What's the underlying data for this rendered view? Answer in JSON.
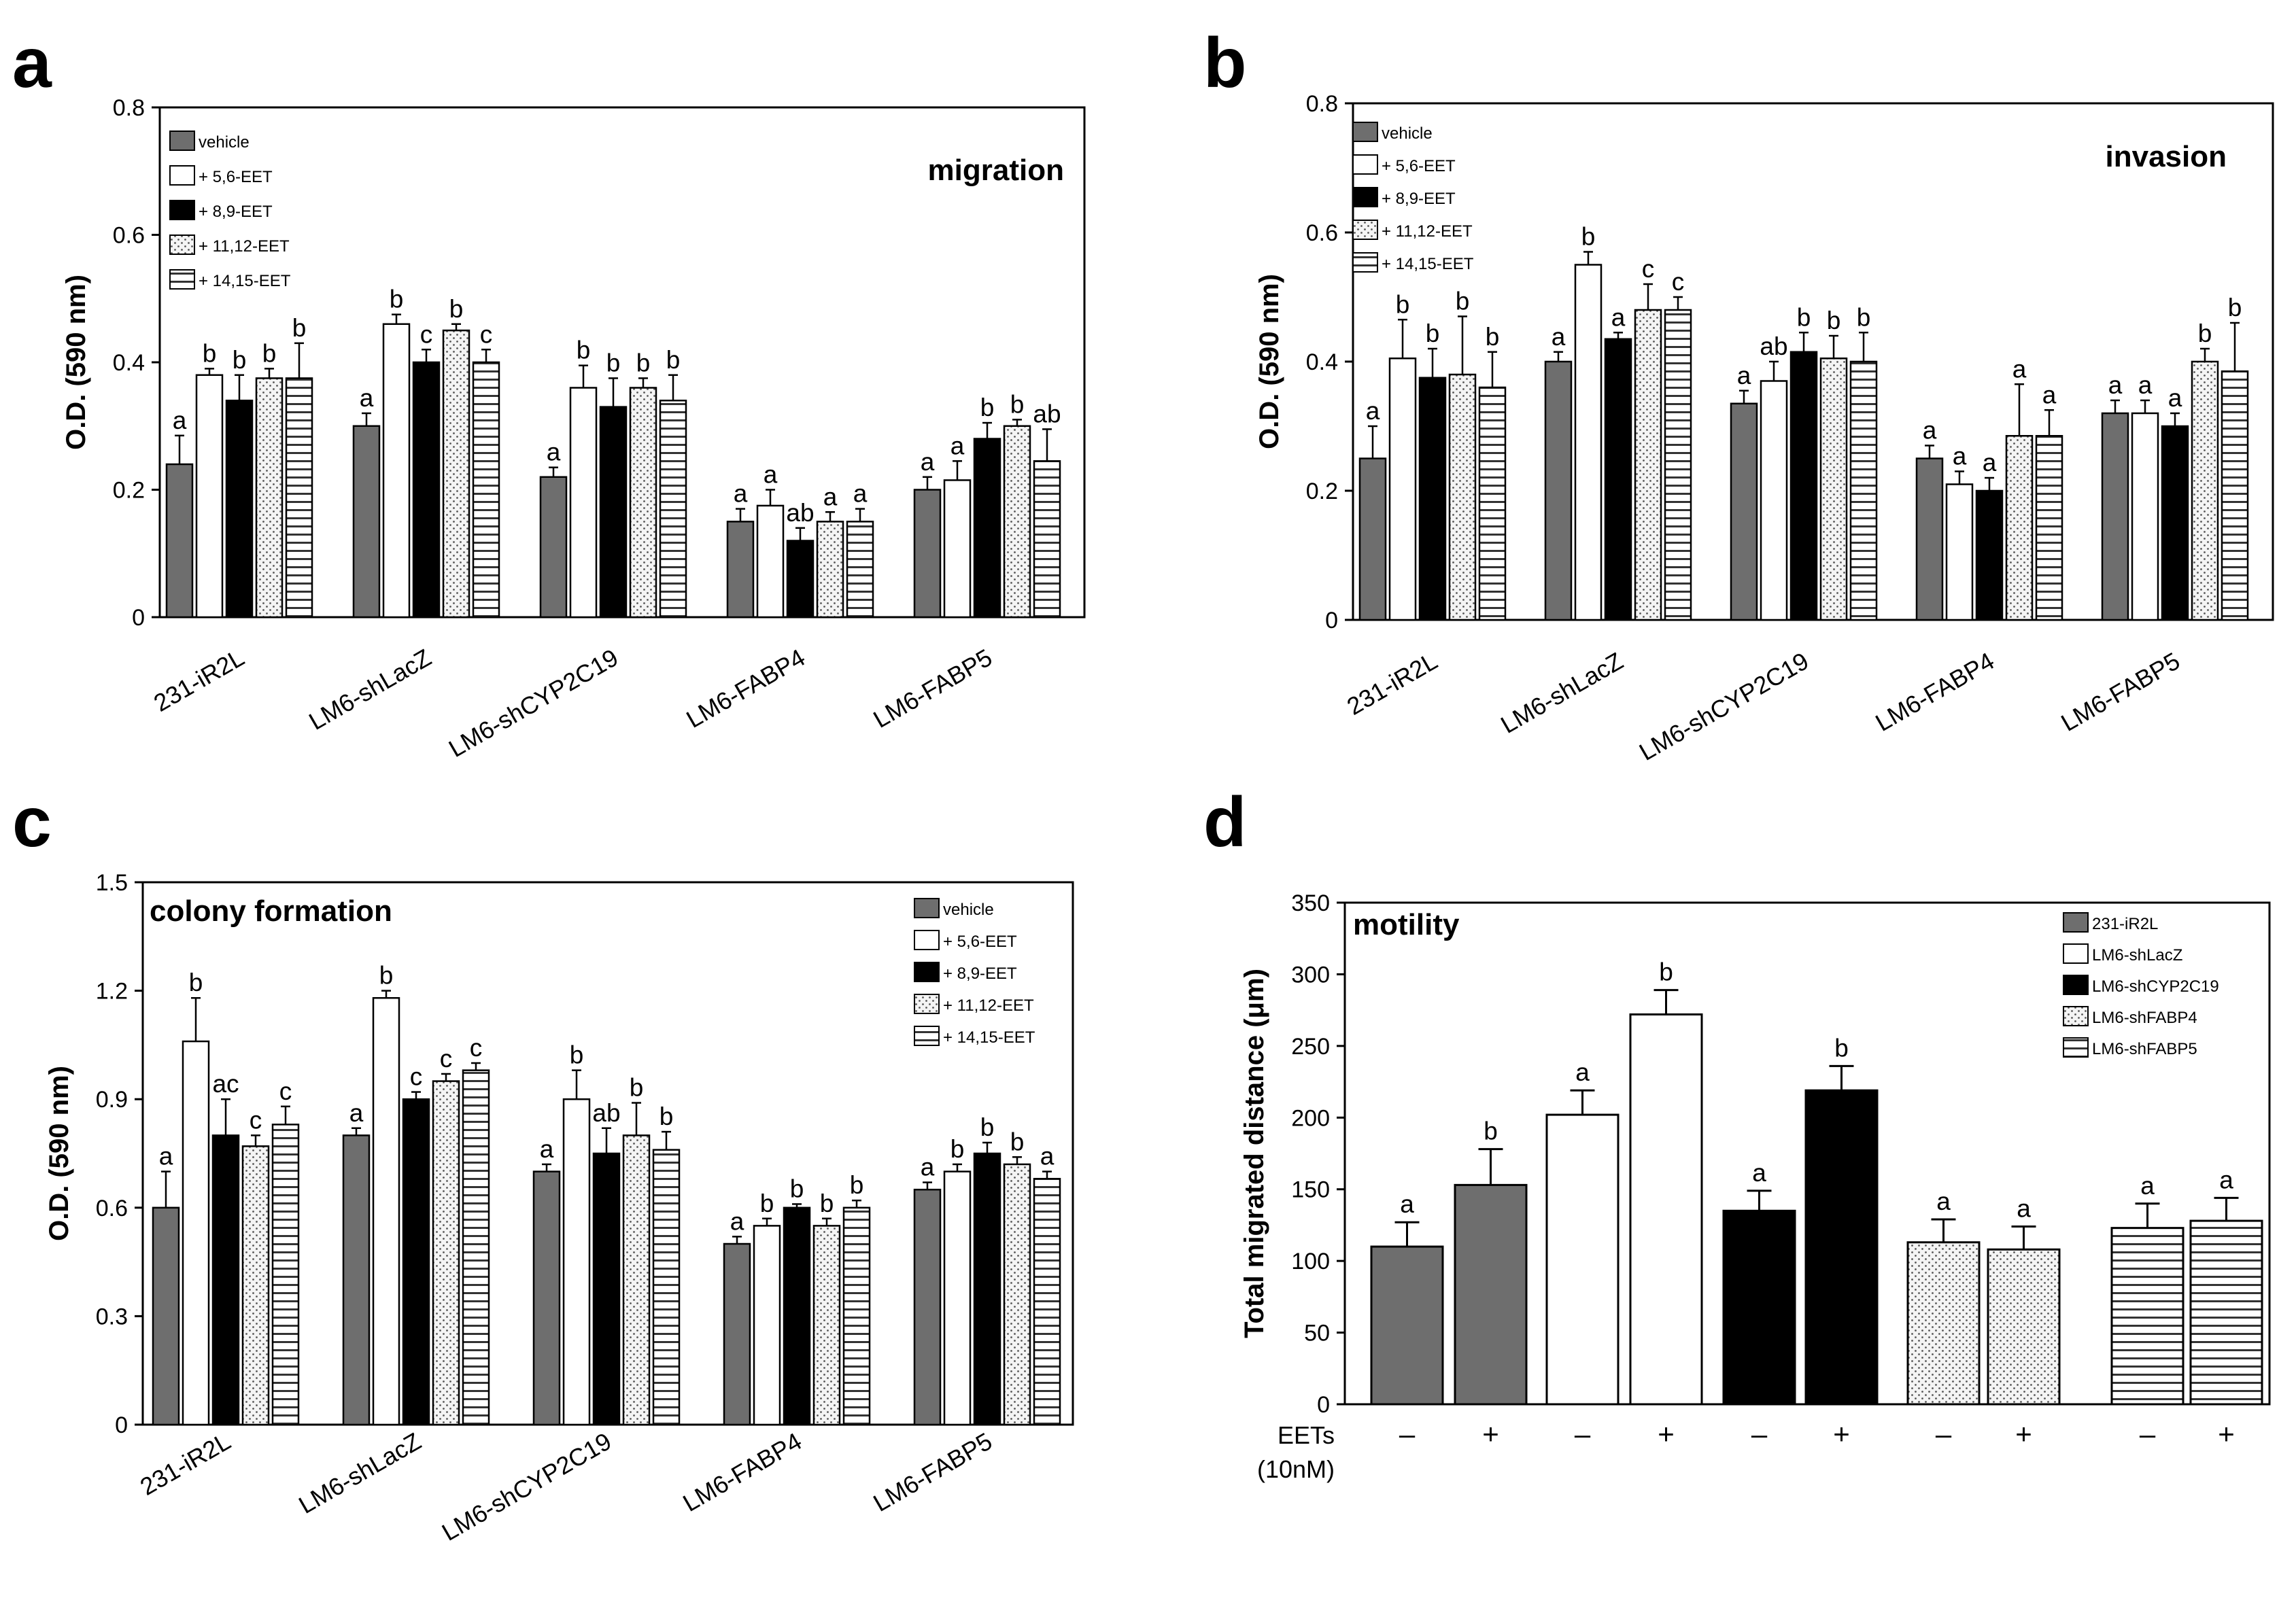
{
  "figure": {
    "colors": {
      "dark_gray": "#6e6e6e",
      "white": "#ffffff",
      "black": "#000000",
      "light": "#f2f2f2",
      "stripe": "#e6e6e6"
    },
    "fill_patterns": [
      "solid-gray",
      "solid-white",
      "solid-black",
      "dotted",
      "horizontal-stripes"
    ]
  },
  "chart_data": [
    {
      "panel": "a",
      "type": "bar",
      "title": "migration",
      "ylabel": "O.D. (590 nm)",
      "ylim": [
        0,
        0.8
      ],
      "yticks": [
        "0",
        "0.2",
        "0.4",
        "0.6",
        "0.8"
      ],
      "ytick_values": [
        0,
        0.2,
        0.4,
        0.6,
        0.8
      ],
      "categories": [
        "231-iR2L",
        "LM6-shLacZ",
        "LM6-shCYP2C19",
        "LM6-FABP4",
        "LM6-FABP5"
      ],
      "legend": [
        "vehicle",
        "+ 5,6-EET",
        "+ 8,9-EET",
        "+ 11,12-EET",
        "+ 14,15-EET"
      ],
      "legend_position": "top-left",
      "series": [
        {
          "name": "vehicle",
          "values": [
            0.24,
            0.3,
            0.22,
            0.15,
            0.2
          ],
          "errors": [
            0.045,
            0.02,
            0.015,
            0.02,
            0.02
          ],
          "letters": [
            "a",
            "a",
            "a",
            "a",
            "a"
          ]
        },
        {
          "name": "+ 5,6-EET",
          "values": [
            0.38,
            0.46,
            0.36,
            0.175,
            0.215
          ],
          "errors": [
            0.01,
            0.015,
            0.035,
            0.025,
            0.03
          ],
          "letters": [
            "b",
            "b",
            "b",
            "a",
            "a"
          ]
        },
        {
          "name": "+ 8,9-EET",
          "values": [
            0.34,
            0.4,
            0.33,
            0.12,
            0.28
          ],
          "errors": [
            0.04,
            0.02,
            0.045,
            0.02,
            0.025
          ],
          "letters": [
            "b",
            "c",
            "b",
            "ab",
            "b"
          ]
        },
        {
          "name": "+ 11,12-EET",
          "values": [
            0.375,
            0.45,
            0.36,
            0.15,
            0.3
          ],
          "errors": [
            0.015,
            0.01,
            0.015,
            0.015,
            0.01
          ],
          "letters": [
            "b",
            "b",
            "b",
            "a",
            "b"
          ]
        },
        {
          "name": "+ 14,15-EET",
          "values": [
            0.375,
            0.4,
            0.34,
            0.15,
            0.245
          ],
          "errors": [
            0.055,
            0.02,
            0.04,
            0.02,
            0.05
          ],
          "letters": [
            "b",
            "c",
            "b",
            "a",
            "ab"
          ]
        }
      ]
    },
    {
      "panel": "b",
      "type": "bar",
      "title": "invasion",
      "ylabel": "O.D. (590 nm)",
      "ylim": [
        0,
        0.8
      ],
      "yticks": [
        "0",
        "0.2",
        "0.4",
        "0.6",
        "0.8"
      ],
      "ytick_values": [
        0,
        0.2,
        0.4,
        0.6,
        0.8
      ],
      "categories": [
        "231-iR2L",
        "LM6-shLacZ",
        "LM6-shCYP2C19",
        "LM6-FABP4",
        "LM6-FABP5"
      ],
      "legend": [
        "vehicle",
        "+ 5,6-EET",
        "+ 8,9-EET",
        "+ 11,12-EET",
        "+ 14,15-EET"
      ],
      "legend_position": "top-left",
      "series": [
        {
          "name": "vehicle",
          "values": [
            0.25,
            0.4,
            0.335,
            0.25,
            0.32
          ],
          "errors": [
            0.05,
            0.015,
            0.02,
            0.02,
            0.02
          ],
          "letters": [
            "a",
            "a",
            "a",
            "a",
            "a"
          ]
        },
        {
          "name": "+ 5,6-EET",
          "values": [
            0.405,
            0.55,
            0.37,
            0.21,
            0.32
          ],
          "errors": [
            0.06,
            0.02,
            0.03,
            0.02,
            0.02
          ],
          "letters": [
            "b",
            "b",
            "ab",
            "a",
            "a"
          ]
        },
        {
          "name": "+ 8,9-EET",
          "values": [
            0.375,
            0.435,
            0.415,
            0.2,
            0.3
          ],
          "errors": [
            0.045,
            0.01,
            0.03,
            0.02,
            0.02
          ],
          "letters": [
            "b",
            "a",
            "b",
            "a",
            "a"
          ]
        },
        {
          "name": "+ 11,12-EET",
          "values": [
            0.38,
            0.48,
            0.405,
            0.285,
            0.4
          ],
          "errors": [
            0.09,
            0.04,
            0.035,
            0.08,
            0.02
          ],
          "letters": [
            "b",
            "c",
            "b",
            "a",
            "b"
          ]
        },
        {
          "name": "+ 14,15-EET",
          "values": [
            0.36,
            0.48,
            0.4,
            0.285,
            0.385
          ],
          "errors": [
            0.055,
            0.02,
            0.045,
            0.04,
            0.075
          ],
          "letters": [
            "b",
            "c",
            "b",
            "a",
            "b"
          ]
        }
      ]
    },
    {
      "panel": "c",
      "type": "bar",
      "title": "colony formation",
      "ylabel": "O.D. (590 nm)",
      "ylim": [
        0,
        1.5
      ],
      "yticks": [
        "0",
        "0.3",
        "0.6",
        "0.9",
        "1.2",
        "1.5"
      ],
      "ytick_values": [
        0,
        0.3,
        0.6,
        0.9,
        1.2,
        1.5
      ],
      "categories": [
        "231-iR2L",
        "LM6-shLacZ",
        "LM6-shCYP2C19",
        "LM6-FABP4",
        "LM6-FABP5"
      ],
      "legend": [
        "vehicle",
        "+ 5,6-EET",
        "+ 8,9-EET",
        "+ 11,12-EET",
        "+ 14,15-EET"
      ],
      "legend_position": "top-right",
      "series": [
        {
          "name": "vehicle",
          "values": [
            0.6,
            0.8,
            0.7,
            0.5,
            0.65
          ],
          "errors": [
            0.1,
            0.02,
            0.02,
            0.02,
            0.02
          ],
          "letters": [
            "a",
            "a",
            "a",
            "a",
            "a"
          ]
        },
        {
          "name": "+ 5,6-EET",
          "values": [
            1.06,
            1.18,
            0.9,
            0.55,
            0.7
          ],
          "errors": [
            0.12,
            0.02,
            0.08,
            0.02,
            0.02
          ],
          "letters": [
            "b",
            "b",
            "b",
            "b",
            "b"
          ]
        },
        {
          "name": "+ 8,9-EET",
          "values": [
            0.8,
            0.9,
            0.75,
            0.6,
            0.75
          ],
          "errors": [
            0.1,
            0.02,
            0.07,
            0.01,
            0.03
          ],
          "letters": [
            "ac",
            "c",
            "ab",
            "b",
            "b"
          ]
        },
        {
          "name": "+ 11,12-EET",
          "values": [
            0.77,
            0.95,
            0.8,
            0.55,
            0.72
          ],
          "errors": [
            0.03,
            0.02,
            0.09,
            0.02,
            0.02
          ],
          "letters": [
            "c",
            "c",
            "b",
            "b",
            "b"
          ]
        },
        {
          "name": "+ 14,15-EET",
          "values": [
            0.83,
            0.98,
            0.76,
            0.6,
            0.68
          ],
          "errors": [
            0.05,
            0.02,
            0.05,
            0.02,
            0.02
          ],
          "letters": [
            "c",
            "c",
            "b",
            "b",
            "a"
          ]
        }
      ]
    },
    {
      "panel": "d",
      "type": "bar",
      "title": "motility",
      "ylabel": "Total migrated distance (μm)",
      "ylim": [
        0,
        350
      ],
      "yticks": [
        "0",
        "50",
        "100",
        "150",
        "200",
        "250",
        "300",
        "350"
      ],
      "ytick_values": [
        0,
        50,
        100,
        150,
        200,
        250,
        300,
        350
      ],
      "legend": [
        "231-iR2L",
        "LM6-shLacZ",
        "LM6-shCYP2C19",
        "LM6-shFABP4",
        "LM6-shFABP5"
      ],
      "legend_position": "top-right",
      "x_row_label": "EETs",
      "x_row_sublabel": "(10nM)",
      "x_signs": [
        "–",
        "+",
        "–",
        "+",
        "–",
        "+",
        "–",
        "+",
        "–",
        "+"
      ],
      "series": [
        {
          "name": "231-iR2L",
          "values": [
            110,
            153
          ],
          "errors": [
            17,
            25
          ],
          "letters": [
            "a",
            "b"
          ]
        },
        {
          "name": "LM6-shLacZ",
          "values": [
            202,
            272
          ],
          "errors": [
            17,
            17
          ],
          "letters": [
            "a",
            "b"
          ]
        },
        {
          "name": "LM6-shCYP2C19",
          "values": [
            135,
            219
          ],
          "errors": [
            14,
            17
          ],
          "letters": [
            "a",
            "b"
          ]
        },
        {
          "name": "LM6-shFABP4",
          "values": [
            113,
            108
          ],
          "errors": [
            16,
            16
          ],
          "letters": [
            "a",
            "a"
          ]
        },
        {
          "name": "LM6-shFABP5",
          "values": [
            123,
            128
          ],
          "errors": [
            17,
            16
          ],
          "letters": [
            "a",
            "a"
          ]
        }
      ]
    }
  ]
}
